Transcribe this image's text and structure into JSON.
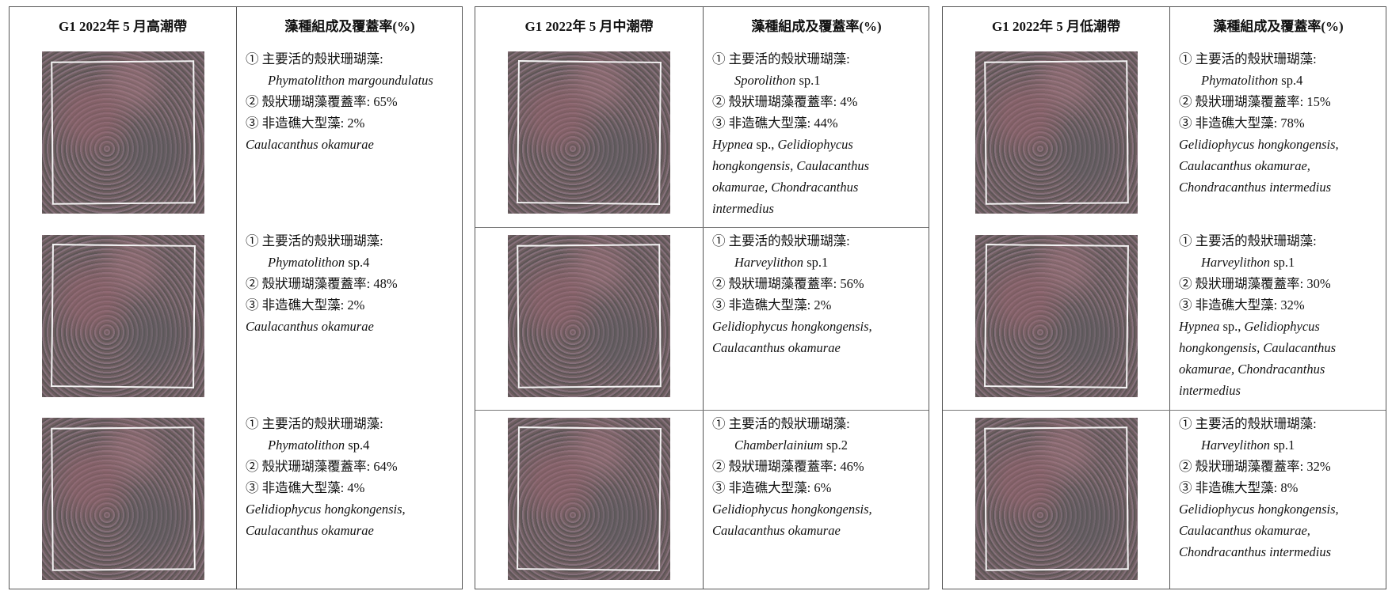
{
  "tables": [
    {
      "header": {
        "site": "G1 2022年 5 月高潮帶",
        "composition": "藻種組成及覆蓋率(%)"
      },
      "rows": [
        {
          "dominant_label": "① 主要活的殼狀珊瑚藻:",
          "dominant_species": "Phymatolithon margoundulatus",
          "coralline_cover": "② 殼狀珊瑚藻覆蓋率: 65%",
          "macroalgae_cover": "③ 非造礁大型藻: 2%",
          "macroalgae_species": "Caulacanthus okamurae"
        },
        {
          "dominant_label": "① 主要活的殼狀珊瑚藻:",
          "dominant_species": "Phymatolithon sp.4",
          "coralline_cover": "② 殼狀珊瑚藻覆蓋率: 48%",
          "macroalgae_cover": "③ 非造礁大型藻: 2%",
          "macroalgae_species": "Caulacanthus okamurae"
        },
        {
          "dominant_label": "① 主要活的殼狀珊瑚藻:",
          "dominant_species": "Phymatolithon sp.4",
          "coralline_cover": "② 殼狀珊瑚藻覆蓋率: 64%",
          "macroalgae_cover": "③ 非造礁大型藻: 4%",
          "macroalgae_species": "Gelidiophycus hongkongensis, Caulacanthus okamurae"
        }
      ]
    },
    {
      "header": {
        "site": "G1 2022年 5 月中潮帶",
        "composition": "藻種組成及覆蓋率(%)"
      },
      "rows": [
        {
          "dominant_label": "① 主要活的殼狀珊瑚藻:",
          "dominant_species": "Sporolithon sp.1",
          "coralline_cover": "② 殼狀珊瑚藻覆蓋率: 4%",
          "macroalgae_cover": "③ 非造礁大型藻: 44%",
          "macroalgae_species": "Hypnea sp., Gelidiophycus hongkongensis, Caulacanthus okamurae, Chondracanthus intermedius"
        },
        {
          "dominant_label": "① 主要活的殼狀珊瑚藻:",
          "dominant_species": "Harveylithon sp.1",
          "coralline_cover": "② 殼狀珊瑚藻覆蓋率: 56%",
          "macroalgae_cover": "③ 非造礁大型藻: 2%",
          "macroalgae_species": "Gelidiophycus hongkongensis, Caulacanthus okamurae"
        },
        {
          "dominant_label": "① 主要活的殼狀珊瑚藻:",
          "dominant_species": "Chamberlainium sp.2",
          "coralline_cover": "② 殼狀珊瑚藻覆蓋率: 46%",
          "macroalgae_cover": "③ 非造礁大型藻: 6%",
          "macroalgae_species": "Gelidiophycus hongkongensis, Caulacanthus okamurae"
        }
      ]
    },
    {
      "header": {
        "site": "G1 2022年 5 月低潮帶",
        "composition": "藻種組成及覆蓋率(%)"
      },
      "rows": [
        {
          "dominant_label": "① 主要活的殼狀珊瑚藻:",
          "dominant_species": "Phymatolithon sp.4",
          "coralline_cover": "② 殼狀珊瑚藻覆蓋率: 15%",
          "macroalgae_cover": "③ 非造礁大型藻: 78%",
          "macroalgae_species": "Gelidiophycus hongkongensis, Caulacanthus okamurae, Chondracanthus intermedius"
        },
        {
          "dominant_label": "① 主要活的殼狀珊瑚藻:",
          "dominant_species": "Harveylithon sp.1",
          "coralline_cover": "② 殼狀珊瑚藻覆蓋率: 30%",
          "macroalgae_cover": "③ 非造礁大型藻: 32%",
          "macroalgae_species": "Hypnea sp., Gelidiophycus hongkongensis, Caulacanthus okamurae, Chondracanthus intermedius"
        },
        {
          "dominant_label": "① 主要活的殼狀珊瑚藻:",
          "dominant_species": "Harveylithon sp.1",
          "coralline_cover": "② 殼狀珊瑚藻覆蓋率: 32%",
          "macroalgae_cover": "③ 非造礁大型藻: 8%",
          "macroalgae_species": "Gelidiophycus hongkongensis, Caulacanthus okamurae, Chondracanthus intermedius"
        }
      ]
    }
  ]
}
